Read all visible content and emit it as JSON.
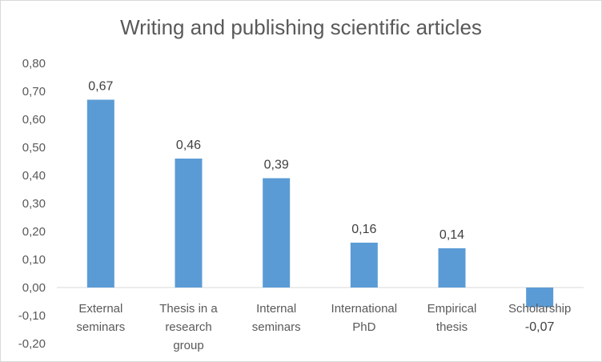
{
  "chart_data": {
    "type": "bar",
    "title": "Writing and publishing scientific articles",
    "categories": [
      [
        "External",
        "seminars"
      ],
      [
        "Thesis in a",
        "research",
        "group"
      ],
      [
        "Internal",
        "seminars"
      ],
      [
        "International",
        "PhD"
      ],
      [
        "Empirical",
        "thesis"
      ],
      [
        "Scholarship"
      ]
    ],
    "values": [
      0.67,
      0.46,
      0.39,
      0.16,
      0.14,
      -0.07
    ],
    "data_labels": [
      "0,67",
      "0,46",
      "0,39",
      "0,16",
      "0,14",
      "-0,07"
    ],
    "ylim": [
      -0.2,
      0.8
    ],
    "yticks": [
      "0,80",
      "0,70",
      "0,60",
      "0,50",
      "0,40",
      "0,30",
      "0,20",
      "0,10",
      "0,00",
      "-0,10",
      "-0,20"
    ],
    "ytick_values": [
      0.8,
      0.7,
      0.6,
      0.5,
      0.4,
      0.3,
      0.2,
      0.1,
      0.0,
      -0.1,
      -0.2
    ],
    "grid": false,
    "bar_color": "#5b9bd5",
    "axis_color": "#d9d9d9"
  }
}
